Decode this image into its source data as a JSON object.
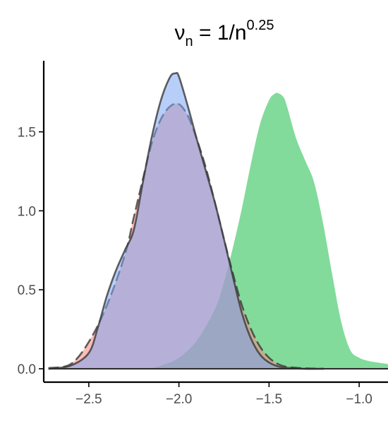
{
  "chart_data": {
    "type": "area",
    "title_parts": {
      "base": "ν",
      "subscript": "n",
      "middle": " = 1/n",
      "superscript": "0.25"
    },
    "xlabel": "",
    "ylabel": "",
    "xlim": [
      -2.75,
      -0.84
    ],
    "ylim": [
      -0.04,
      1.95
    ],
    "x_ticks": [
      {
        "value": -2.5,
        "label": "−2.5"
      },
      {
        "value": -2.0,
        "label": "−2.0"
      },
      {
        "value": -1.5,
        "label": "−1.5"
      },
      {
        "value": -1.0,
        "label": "−1.0"
      }
    ],
    "y_ticks": [
      {
        "value": 0.0,
        "label": "0.0"
      },
      {
        "value": 0.5,
        "label": "0.5"
      },
      {
        "value": 1.0,
        "label": "1.0"
      },
      {
        "value": 1.5,
        "label": "1.5"
      }
    ],
    "grid": false,
    "legend": "none",
    "series": [
      {
        "fill": "#6fd68c",
        "opacity": 0.87,
        "outline": "none",
        "x": [
          -2.17,
          -2.1,
          -2.0,
          -1.9,
          -1.8,
          -1.75,
          -1.7,
          -1.65,
          -1.6,
          -1.55,
          -1.5,
          -1.47,
          -1.45,
          -1.42,
          -1.4,
          -1.35,
          -1.3,
          -1.25,
          -1.2,
          -1.15,
          -1.1,
          -1.05,
          -1.0,
          -0.95,
          -0.9,
          -0.84
        ],
        "y": [
          0.0,
          0.02,
          0.07,
          0.18,
          0.38,
          0.55,
          0.77,
          1.02,
          1.3,
          1.55,
          1.7,
          1.74,
          1.745,
          1.72,
          1.66,
          1.46,
          1.32,
          1.18,
          0.92,
          0.6,
          0.3,
          0.12,
          0.07,
          0.05,
          0.04,
          0.03
        ]
      },
      {
        "fill": "#f9857d",
        "opacity": 0.55,
        "outline": "dashed",
        "x": [
          -2.72,
          -2.6,
          -2.5,
          -2.4,
          -2.3,
          -2.25,
          -2.2,
          -2.15,
          -2.1,
          -2.05,
          -2.0,
          -1.95,
          -1.9,
          -1.85,
          -1.8,
          -1.75,
          -1.7,
          -1.65,
          -1.6,
          -1.55,
          -1.5,
          -1.45,
          -1.4,
          -1.3,
          -1.2
        ],
        "y": [
          0.005,
          0.03,
          0.17,
          0.4,
          0.72,
          0.96,
          1.2,
          1.43,
          1.58,
          1.66,
          1.675,
          1.6,
          1.45,
          1.27,
          1.05,
          0.82,
          0.6,
          0.4,
          0.25,
          0.14,
          0.07,
          0.03,
          0.012,
          0.003,
          0.0
        ]
      },
      {
        "fill": "#7ba6f2",
        "opacity": 0.55,
        "outline": "solid",
        "x": [
          -2.72,
          -2.6,
          -2.5,
          -2.45,
          -2.4,
          -2.35,
          -2.3,
          -2.25,
          -2.2,
          -2.15,
          -2.1,
          -2.05,
          -2.02,
          -2.0,
          -1.95,
          -1.9,
          -1.85,
          -1.8,
          -1.75,
          -1.7,
          -1.65,
          -1.6,
          -1.55,
          -1.5,
          -1.45,
          -1.4,
          -1.3,
          -1.2
        ],
        "y": [
          0.0,
          0.02,
          0.1,
          0.26,
          0.46,
          0.62,
          0.75,
          0.88,
          1.18,
          1.47,
          1.7,
          1.845,
          1.87,
          1.85,
          1.66,
          1.45,
          1.25,
          1.05,
          0.82,
          0.58,
          0.35,
          0.19,
          0.09,
          0.04,
          0.015,
          0.006,
          0.0,
          0.0
        ]
      }
    ]
  }
}
